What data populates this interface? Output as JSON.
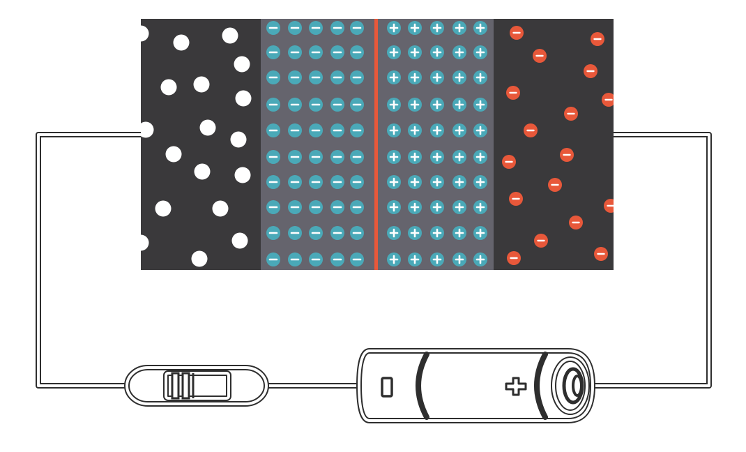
{
  "colors": {
    "n_region": "#3a393b",
    "depletion_region": "#65646d",
    "p_region": "#3a393b",
    "ion_teal": "#4aa9b8",
    "junction_line": "#e8583a",
    "carrier_red": "#e8583a",
    "hole_white": "#ffffff",
    "wire_outline": "#2e2e2e"
  },
  "regions": [
    "hole-region",
    "negative-ion-region",
    "positive-ion-region",
    "electron-region"
  ],
  "components": [
    "semiconductor-block",
    "resistor",
    "battery"
  ],
  "battery": {
    "minus_terminal": "negative",
    "plus_terminal": "positive"
  }
}
